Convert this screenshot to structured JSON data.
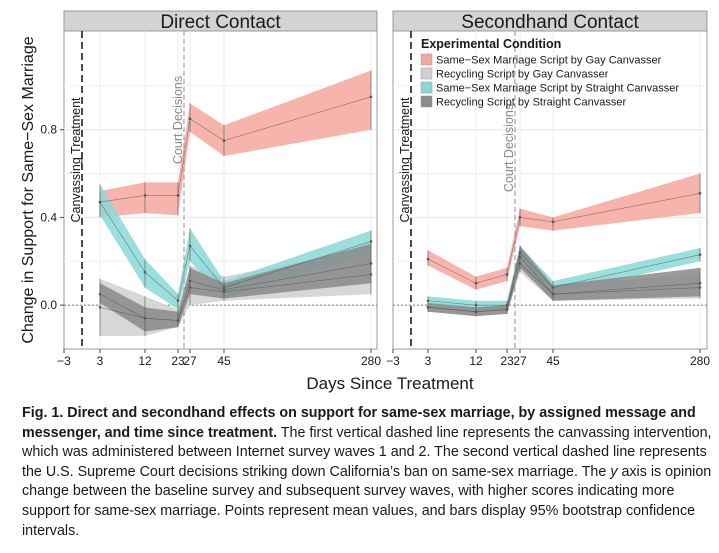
{
  "chart_data": [
    {
      "type": "line",
      "title": "Direct Contact",
      "xlabel": "Days Since Treatment",
      "ylabel": "Change in Support for Same−Sex Marriage",
      "x": [
        3,
        12,
        23,
        27,
        45,
        280
      ],
      "x_ticks": [
        "−3",
        "3",
        "12",
        "23",
        "27",
        "45",
        "280"
      ],
      "y_ticks": [
        "0.0",
        "0.4",
        "0.8"
      ],
      "ylim": [
        -0.2,
        1.25
      ],
      "grid": true,
      "vlines": [
        {
          "label": "Canvassing Treatment",
          "style": "dashed",
          "color": "#000000"
        },
        {
          "label": "Court Decisions",
          "style": "dashed",
          "color": "#9a9a9a"
        }
      ],
      "series": [
        {
          "name": "Same−Sex Marriage Script by Gay Canvasser",
          "color": "#f4a79e",
          "mean": [
            0.47,
            0.5,
            0.5,
            0.85,
            0.75,
            0.95
          ],
          "lower": [
            0.4,
            0.42,
            0.41,
            0.79,
            0.68,
            0.8
          ],
          "upper": [
            0.52,
            0.56,
            0.56,
            0.92,
            0.82,
            1.07
          ]
        },
        {
          "name": "Recycling Script by Gay Canvasser",
          "color": "#d0d0d0",
          "mean": [
            -0.01,
            -0.06,
            -0.07,
            0.08,
            0.06,
            0.14
          ],
          "lower": [
            -0.14,
            -0.14,
            -0.1,
            0.0,
            0.02,
            0.05
          ],
          "upper": [
            0.12,
            0.04,
            -0.02,
            0.18,
            0.13,
            0.26
          ]
        },
        {
          "name": "Same−Sex Marriage Script by Straight Canvasser",
          "color": "#88d8d8",
          "mean": [
            0.47,
            0.15,
            0.02,
            0.27,
            0.08,
            0.29
          ],
          "lower": [
            0.41,
            0.08,
            -0.02,
            0.2,
            0.03,
            0.24
          ],
          "upper": [
            0.55,
            0.21,
            0.05,
            0.35,
            0.11,
            0.34
          ]
        },
        {
          "name": "Recycling Script by Straight Canvasser",
          "color": "#8a8a8a",
          "mean": [
            0.05,
            -0.06,
            -0.07,
            0.11,
            0.07,
            0.19
          ],
          "lower": [
            0.01,
            -0.12,
            -0.1,
            0.05,
            0.03,
            0.1
          ],
          "upper": [
            0.1,
            -0.01,
            -0.03,
            0.17,
            0.1,
            0.28
          ]
        }
      ]
    },
    {
      "type": "line",
      "title": "Secondhand Contact",
      "xlabel": "Days Since Treatment",
      "x": [
        3,
        12,
        23,
        27,
        45,
        280
      ],
      "x_ticks": [
        "−3",
        "3",
        "12",
        "23",
        "27",
        "45",
        "280"
      ],
      "ylim": [
        -0.2,
        1.25
      ],
      "grid": true,
      "legend": {
        "title": "Experimental Condition",
        "position": "top-right"
      },
      "vlines": [
        {
          "label": "Canvassing Treatment",
          "style": "dashed",
          "color": "#000000"
        },
        {
          "label": "Court Decisions",
          "style": "dashed",
          "color": "#9a9a9a"
        }
      ],
      "series": [
        {
          "name": "Same−Sex Marriage Script by Gay Canvasser",
          "color": "#f4a79e",
          "mean": [
            0.21,
            0.1,
            0.14,
            0.4,
            0.38,
            0.51
          ],
          "lower": [
            0.18,
            0.07,
            0.11,
            0.36,
            0.34,
            0.42
          ],
          "upper": [
            0.25,
            0.13,
            0.17,
            0.44,
            0.4,
            0.6
          ]
        },
        {
          "name": "Recycling Script by Gay Canvasser",
          "color": "#d0d0d0",
          "mean": [
            -0.01,
            -0.03,
            -0.02,
            0.19,
            0.05,
            0.08
          ],
          "lower": [
            -0.03,
            -0.05,
            -0.04,
            0.15,
            0.02,
            0.03
          ],
          "upper": [
            0.01,
            -0.01,
            0.0,
            0.24,
            0.09,
            0.14
          ]
        },
        {
          "name": "Same−Sex Marriage Script by Straight Canvasser",
          "color": "#88d8d8",
          "mean": [
            0.02,
            0.0,
            0.0,
            0.24,
            0.08,
            0.23
          ],
          "lower": [
            0.0,
            -0.02,
            -0.02,
            0.21,
            0.05,
            0.2
          ],
          "upper": [
            0.04,
            0.02,
            0.02,
            0.27,
            0.11,
            0.26
          ]
        },
        {
          "name": "Recycling Script by Straight Canvasser",
          "color": "#8a8a8a",
          "mean": [
            -0.01,
            -0.03,
            -0.02,
            0.22,
            0.05,
            0.1
          ],
          "lower": [
            -0.03,
            -0.05,
            -0.04,
            0.17,
            0.02,
            0.04
          ],
          "upper": [
            0.01,
            -0.01,
            0.0,
            0.27,
            0.09,
            0.17
          ]
        }
      ]
    }
  ],
  "caption": {
    "lead": "Fig. 1. Direct and secondhand effects on support for same-sex marriage, by assigned message and messenger, and time since treatment.",
    "body_1": "The first vertical dashed line represents the canvassing intervention, which was administered between Internet survey waves 1 and 2. The second vertical dashed line represents the U.S. Supreme Court decisions striking down California’s ban on same-sex marriage. The ",
    "axis_letter": "y",
    "body_2": " axis is opinion change between the baseline survey and subsequent survey waves, with higher scores indicating more support for same-sex marriage. Points represent mean values, and bars display 95% bootstrap confidence intervals."
  }
}
